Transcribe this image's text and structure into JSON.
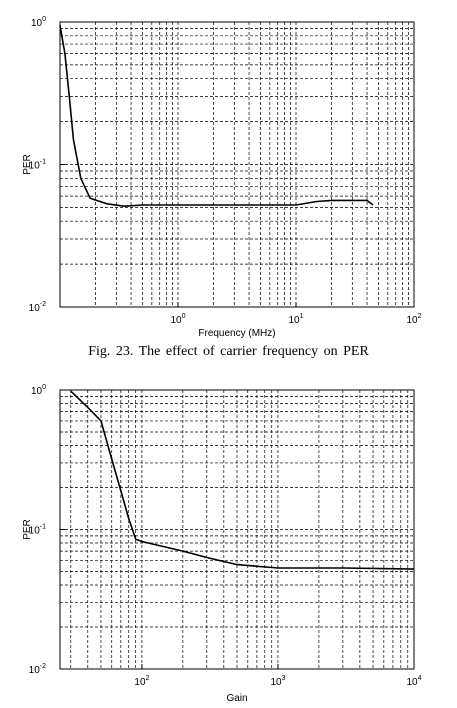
{
  "chart_data": [
    {
      "type": "line",
      "xlabel": "Frequency (MHz)",
      "ylabel": "PER",
      "xscale": "log",
      "yscale": "log",
      "xlim": [
        0.1,
        100
      ],
      "ylim": [
        0.01,
        1
      ],
      "x_ticks": [
        {
          "base": "10",
          "exp": "0",
          "value": 1
        },
        {
          "base": "10",
          "exp": "1",
          "value": 10
        },
        {
          "base": "10",
          "exp": "2",
          "value": 100
        }
      ],
      "y_ticks": [
        {
          "base": "10",
          "exp": "0",
          "value": 1
        },
        {
          "base": "10",
          "exp": "-1",
          "value": 0.1
        },
        {
          "base": "10",
          "exp": "-2",
          "value": 0.01
        }
      ],
      "grid": true,
      "series": [
        {
          "x": [
            0.1,
            0.11,
            0.12,
            0.13,
            0.15,
            0.18,
            0.25,
            0.35,
            0.5,
            1,
            3,
            10,
            15,
            20,
            30,
            40,
            45
          ],
          "y": [
            0.95,
            0.6,
            0.3,
            0.15,
            0.08,
            0.058,
            0.053,
            0.051,
            0.052,
            0.052,
            0.052,
            0.052,
            0.055,
            0.056,
            0.056,
            0.056,
            0.052
          ]
        }
      ]
    },
    {
      "type": "line",
      "xlabel": "Gain",
      "ylabel": "PER",
      "xscale": "log",
      "yscale": "log",
      "xlim": [
        25,
        10000
      ],
      "ylim": [
        0.01,
        1
      ],
      "x_ticks": [
        {
          "base": "10",
          "exp": "2",
          "value": 100
        },
        {
          "base": "10",
          "exp": "3",
          "value": 1000
        },
        {
          "base": "10",
          "exp": "4",
          "value": 10000
        }
      ],
      "y_ticks": [
        {
          "base": "10",
          "exp": "0",
          "value": 1
        },
        {
          "base": "10",
          "exp": "-1",
          "value": 0.1
        },
        {
          "base": "10",
          "exp": "-2",
          "value": 0.01
        }
      ],
      "grid": true,
      "series": [
        {
          "x": [
            30,
            40,
            50,
            60,
            70,
            80,
            90,
            100,
            200,
            300,
            500,
            1000,
            3000,
            10000
          ],
          "y": [
            0.98,
            0.75,
            0.6,
            0.32,
            0.19,
            0.12,
            0.085,
            0.082,
            0.07,
            0.063,
            0.056,
            0.053,
            0.053,
            0.052
          ]
        }
      ]
    }
  ],
  "caption": "Fig.  23. The effect of  carrier  frequency  on  PER"
}
